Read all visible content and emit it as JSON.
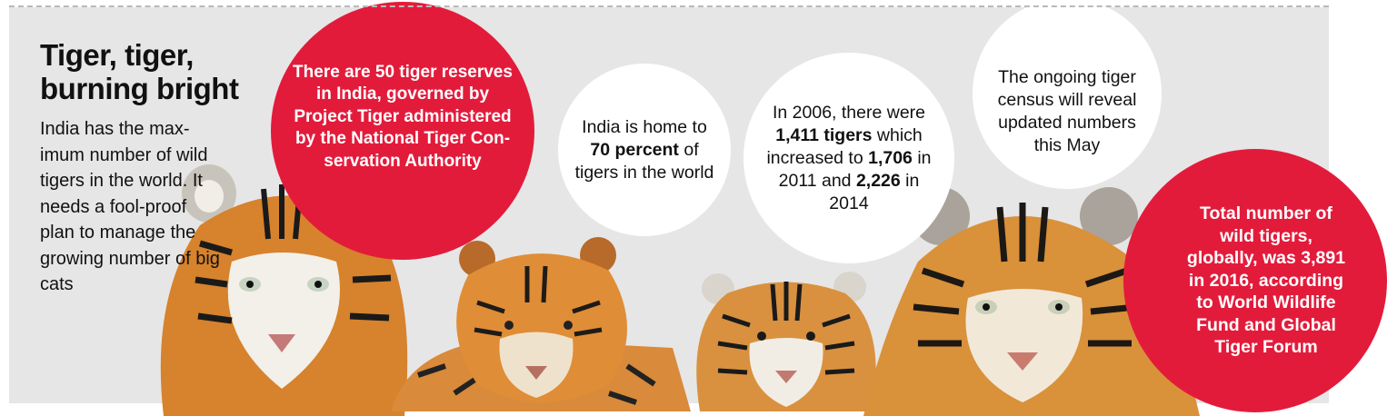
{
  "title_line1": "Tiger, tiger,",
  "title_line2": "burning bright",
  "intro": "India has the max-imum number of wild tigers in the world. It needs a fool-proof plan to manage the growing number of big cats",
  "reserves_text": "There are 50 tiger reserves in India, governed by Project Tiger administered by the National Tiger Con-servation Authority",
  "home": {
    "pre": "India is home to ",
    "highlight": "70 percent",
    "post": " of tigers in the world"
  },
  "growth": {
    "p1": "In 2006, there were ",
    "v1": "1,411 tigers",
    "p2": " which increased to ",
    "v2": "1,706",
    "p3": " in 2011 and ",
    "v3": "2,226",
    "p4": " in 2014"
  },
  "census_text": "The ongoing tiger census will reveal updated numbers this May",
  "global_text": "Total number of wild tigers, globally, was 3,891 in 2016, according to World Wildlife Fund and Global Tiger Forum",
  "colors": {
    "accent_red": "#e31b3b",
    "panel_gray": "#e6e6e6",
    "tiger_orange": "#d9822b"
  },
  "images": [
    "tiger-photo-1",
    "tiger-photo-2",
    "tiger-photo-3",
    "tiger-photo-4"
  ]
}
